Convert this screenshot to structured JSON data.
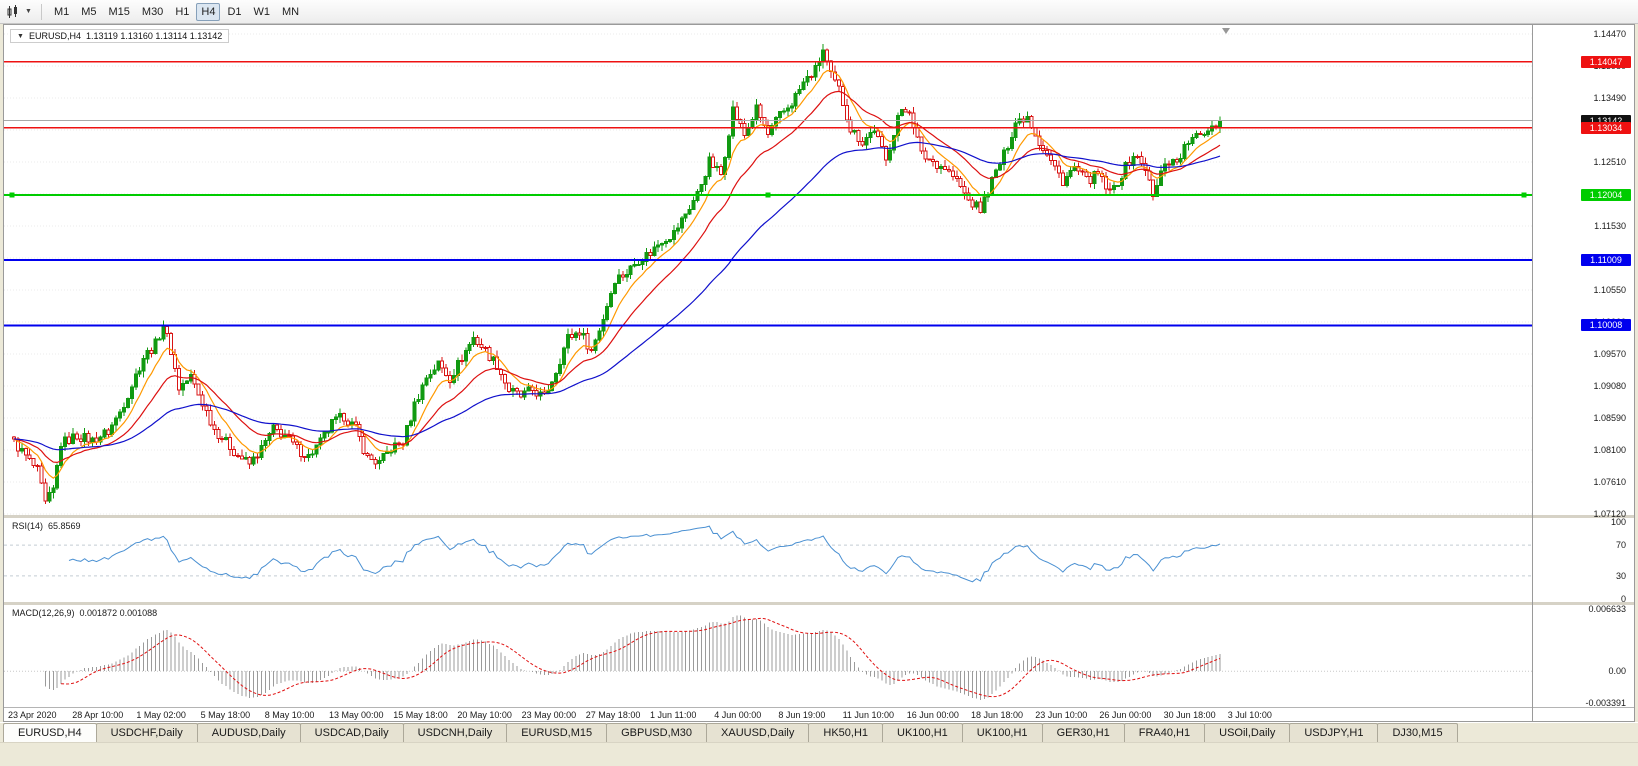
{
  "toolbar": {
    "timeframes": [
      "M1",
      "M5",
      "M15",
      "M30",
      "H1",
      "H4",
      "D1",
      "W1",
      "MN"
    ],
    "selected": "H4"
  },
  "chart": {
    "title_symbol": "EURUSD,H4",
    "ohlc_text": "1.13119 1.13160 1.13114 1.13142"
  },
  "rsi": {
    "name": "RSI(14)",
    "value": "65.8569",
    "line_color": "#4a90d2",
    "scale_levels": [
      [
        100,
        "100"
      ],
      [
        70,
        "70"
      ],
      [
        30,
        "30"
      ],
      [
        0,
        "0"
      ]
    ]
  },
  "macd": {
    "name": "MACD(12,26,9)",
    "values_text": "0.001872 0.001088",
    "scale_levels": [
      [
        0.006633,
        "0.006633"
      ],
      [
        0,
        "0.00"
      ],
      [
        -0.003391,
        "-0.003391"
      ]
    ]
  },
  "x_axis_labels": [
    "23 Apr 2020",
    "28 Apr 10:00",
    "1 May 02:00",
    "5 May 18:00",
    "8 May 10:00",
    "13 May 00:00",
    "15 May 18:00",
    "20 May 10:00",
    "23 May 00:00",
    "27 May 18:00",
    "1 Jun 11:00",
    "4 Jun 00:00",
    "8 Jun 19:00",
    "11 Jun 10:00",
    "16 Jun 00:00",
    "18 Jun 18:00",
    "23 Jun 10:00",
    "26 Jun 00:00",
    "30 Jun 18:00",
    "3 Jul 10:00"
  ],
  "tabs": [
    "EURUSD,H4",
    "USDCHF,Daily",
    "AUDUSD,Daily",
    "USDCAD,Daily",
    "USDCNH,Daily",
    "EURUSD,M15",
    "GBPUSD,M30",
    "XAUUSD,Daily",
    "HK50,H1",
    "UK100,H1",
    "UK100,H1",
    "GER30,H1",
    "FRA40,H1",
    "USOil,Daily",
    "USDJPY,H1",
    "DJ30,M15"
  ],
  "active_tab": "EURUSD,H4",
  "chart_data": {
    "type": "candlestick",
    "symbol": "EURUSD",
    "timeframe": "H4",
    "current_ohlc": {
      "open": "1.13119",
      "high": "1.13160",
      "low": "1.13114",
      "close": "1.13142"
    },
    "price_axis": {
      "top_label_price": 1.1447,
      "step": 0.0049,
      "labels": [
        "1.14470",
        "1.13980",
        "1.13490",
        "1.13000",
        "1.12510",
        "1.12020",
        "1.11530",
        "1.11040",
        "1.10550",
        "1.10060",
        "1.09570",
        "1.09080",
        "1.08590",
        "1.08100",
        "1.07610",
        "1.07120"
      ]
    },
    "horizontal_levels": [
      {
        "value": 1.14047,
        "label": "1.14047",
        "color": "#ee1111",
        "width": 1.4,
        "type": "resistance-line"
      },
      {
        "value": 1.13142,
        "label": "1.13142",
        "color": "#a8a8a8",
        "tag_color": "#111111",
        "width": 1,
        "type": "current-price-line"
      },
      {
        "value": 1.13034,
        "label": "1.13034",
        "color": "#ee1111",
        "width": 1.4,
        "type": "resistance-line"
      },
      {
        "value": 1.12004,
        "label": "1.12004",
        "color": "#00cc00",
        "width": 1.8,
        "handles": true,
        "type": "support-line"
      },
      {
        "value": 1.11009,
        "label": "1.11009",
        "color": "#0000ee",
        "width": 1.8,
        "type": "support-line"
      },
      {
        "value": 1.10008,
        "label": "1.10008",
        "color": "#0000ee",
        "width": 1.8,
        "type": "support-line"
      }
    ],
    "num_bars": 308,
    "price_anchors": [
      [
        0,
        1.0822
      ],
      [
        3,
        1.08
      ],
      [
        6,
        1.0778
      ],
      [
        8,
        1.0727
      ],
      [
        10,
        1.0748
      ],
      [
        12,
        1.082
      ],
      [
        16,
        1.0832
      ],
      [
        20,
        1.0825
      ],
      [
        24,
        1.0838
      ],
      [
        27,
        1.0868
      ],
      [
        30,
        1.091
      ],
      [
        33,
        1.0952
      ],
      [
        36,
        1.0972
      ],
      [
        38,
        1.1002
      ],
      [
        40,
        1.0962
      ],
      [
        42,
        1.0905
      ],
      [
        45,
        1.0922
      ],
      [
        48,
        1.0882
      ],
      [
        51,
        1.0842
      ],
      [
        54,
        1.0822
      ],
      [
        57,
        1.0802
      ],
      [
        60,
        1.0788
      ],
      [
        63,
        1.0812
      ],
      [
        66,
        1.0842
      ],
      [
        69,
        1.0832
      ],
      [
        72,
        1.0812
      ],
      [
        75,
        1.08
      ],
      [
        78,
        1.0822
      ],
      [
        81,
        1.085
      ],
      [
        84,
        1.0862
      ],
      [
        87,
        1.0842
      ],
      [
        90,
        1.0798
      ],
      [
        93,
        1.079
      ],
      [
        96,
        1.0812
      ],
      [
        99,
        1.0822
      ],
      [
        102,
        1.088
      ],
      [
        105,
        1.0922
      ],
      [
        108,
        1.0942
      ],
      [
        111,
        1.092
      ],
      [
        114,
        1.0952
      ],
      [
        117,
        1.0982
      ],
      [
        120,
        1.0962
      ],
      [
        123,
        1.094
      ],
      [
        126,
        1.0902
      ],
      [
        129,
        1.0892
      ],
      [
        132,
        1.0902
      ],
      [
        135,
        1.089
      ],
      [
        138,
        1.0932
      ],
      [
        141,
        1.0982
      ],
      [
        144,
        1.0992
      ],
      [
        147,
        1.0962
      ],
      [
        150,
        1.1012
      ],
      [
        153,
        1.1072
      ],
      [
        156,
        1.1082
      ],
      [
        159,
        1.1102
      ],
      [
        162,
        1.1112
      ],
      [
        165,
        1.1132
      ],
      [
        168,
        1.1142
      ],
      [
        171,
        1.1172
      ],
      [
        174,
        1.1202
      ],
      [
        177,
        1.1252
      ],
      [
        180,
        1.1232
      ],
      [
        183,
        1.1332
      ],
      [
        186,
        1.1292
      ],
      [
        189,
        1.1332
      ],
      [
        192,
        1.1292
      ],
      [
        195,
        1.1322
      ],
      [
        198,
        1.1342
      ],
      [
        201,
        1.1372
      ],
      [
        204,
        1.1392
      ],
      [
        206,
        1.1422
      ],
      [
        208,
        1.1382
      ],
      [
        210,
        1.1362
      ],
      [
        213,
        1.1302
      ],
      [
        216,
        1.1282
      ],
      [
        219,
        1.1302
      ],
      [
        222,
        1.1252
      ],
      [
        225,
        1.1322
      ],
      [
        228,
        1.1332
      ],
      [
        231,
        1.1262
      ],
      [
        234,
        1.1252
      ],
      [
        237,
        1.1242
      ],
      [
        240,
        1.1222
      ],
      [
        243,
        1.1192
      ],
      [
        246,
        1.1178
      ],
      [
        249,
        1.1222
      ],
      [
        252,
        1.1262
      ],
      [
        255,
        1.1312
      ],
      [
        258,
        1.1322
      ],
      [
        261,
        1.1282
      ],
      [
        264,
        1.1252
      ],
      [
        267,
        1.1222
      ],
      [
        270,
        1.1242
      ],
      [
        273,
        1.1222
      ],
      [
        276,
        1.1232
      ],
      [
        279,
        1.1202
      ],
      [
        282,
        1.1232
      ],
      [
        285,
        1.1262
      ],
      [
        288,
        1.1242
      ],
      [
        290,
        1.1196
      ],
      [
        293,
        1.1252
      ],
      [
        296,
        1.1252
      ],
      [
        299,
        1.1282
      ],
      [
        302,
        1.1292
      ],
      [
        305,
        1.1308
      ],
      [
        307,
        1.13142
      ]
    ],
    "moving_averages": [
      {
        "period": 8,
        "color": "#ff9900"
      },
      {
        "period": 20,
        "color": "#dd1111"
      },
      {
        "period": 55,
        "color": "#1111cc"
      }
    ],
    "indicators": {
      "rsi": {
        "period": 14,
        "display_value": 65.8569
      },
      "macd": {
        "fast": 12,
        "slow": 26,
        "signal": 9,
        "display_macd": 0.001872,
        "display_signal": 0.001088,
        "scale_max": 0.006633,
        "scale_min": -0.003391
      }
    },
    "colors": {
      "bull": "#119a11",
      "bear": "#d91414",
      "background": "#ffffff",
      "grid": "#ebebeb"
    }
  }
}
